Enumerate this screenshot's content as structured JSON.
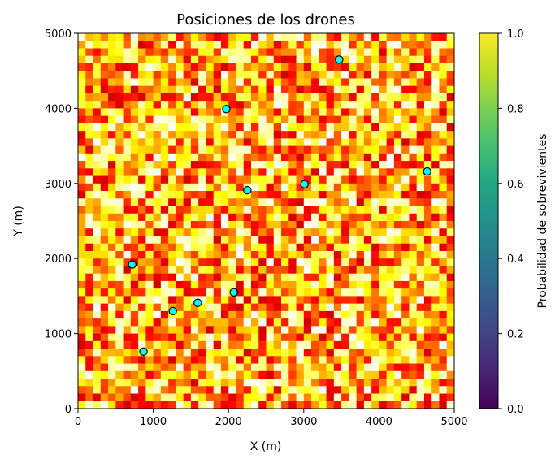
{
  "chart_data": [
    {
      "type": "heatmap",
      "title": "Posiciones de los drones",
      "xlabel": "X (m)",
      "ylabel": "Y (m)",
      "xlim": [
        0,
        5000
      ],
      "ylim": [
        0,
        5000
      ],
      "xticks": [
        0,
        1000,
        2000,
        3000,
        4000,
        5000
      ],
      "yticks": [
        0,
        1000,
        2000,
        3000,
        4000,
        5000
      ],
      "grid_cells": [
        50,
        50
      ],
      "colormap": "hot",
      "heatmap_values": "approximately uniform random in [0, 1] per cell (approx. 0.3–1.0 visible)",
      "grid": false,
      "colorbar": {
        "label": "Probabilidad de sobrevivientes",
        "colormap": "viridis",
        "range": [
          0.0,
          1.0
        ],
        "ticks": [
          "0.0",
          "0.2",
          "0.4",
          "0.6",
          "0.8",
          "1.0"
        ]
      },
      "scatter": {
        "marker_color": "#00ffff",
        "edge_color": "#000000",
        "points": [
          {
            "x": 3470,
            "y": 4650
          },
          {
            "x": 1970,
            "y": 3990
          },
          {
            "x": 4640,
            "y": 3160
          },
          {
            "x": 3010,
            "y": 2990
          },
          {
            "x": 2250,
            "y": 2910
          },
          {
            "x": 720,
            "y": 1920
          },
          {
            "x": 2070,
            "y": 1550
          },
          {
            "x": 1590,
            "y": 1410
          },
          {
            "x": 1260,
            "y": 1300
          },
          {
            "x": 870,
            "y": 760
          }
        ]
      }
    }
  ]
}
